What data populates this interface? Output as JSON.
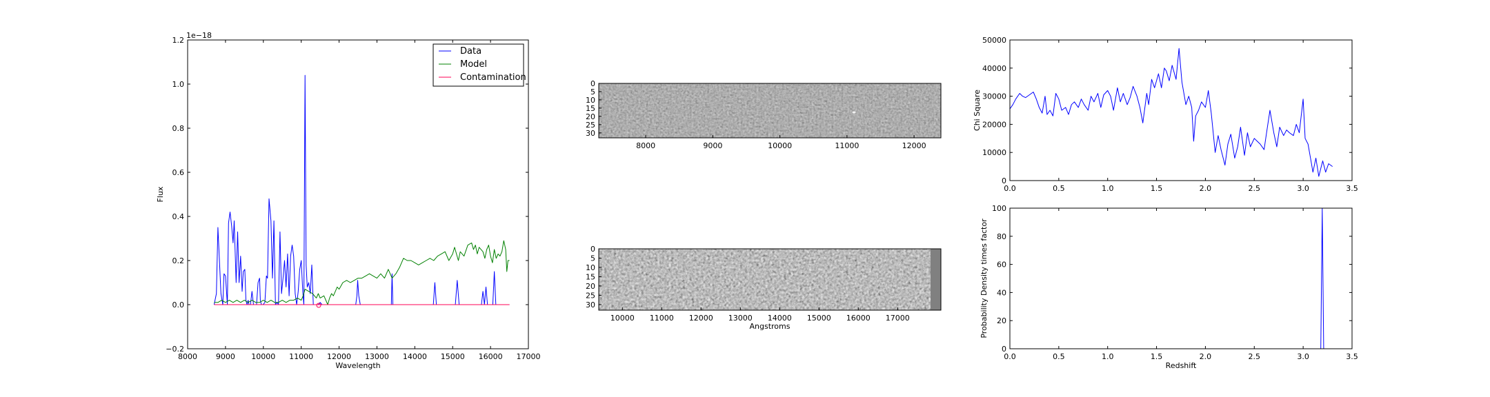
{
  "chart_data": [
    {
      "type": "line",
      "xlabel": "Wavelength",
      "ylabel": "Flux",
      "offset_text": "1e−18",
      "xlim": [
        8000,
        17000
      ],
      "ylim": [
        -0.2,
        1.2
      ],
      "xticks": [
        "8000",
        "9000",
        "10000",
        "11000",
        "12000",
        "13000",
        "14000",
        "15000",
        "16000",
        "17000"
      ],
      "yticks": [
        "−0.2",
        "0.0",
        "0.2",
        "0.4",
        "0.6",
        "0.8",
        "1.0",
        "1.2"
      ],
      "legend_position": "top-right",
      "series": [
        {
          "name": "Data",
          "color": "#0000ff",
          "x": [
            8700,
            8760,
            8800,
            8840,
            8880,
            8930,
            8960,
            9000,
            9050,
            9080,
            9120,
            9160,
            9200,
            9230,
            9280,
            9320,
            9360,
            9400,
            9440,
            9470,
            9510,
            9540,
            9570,
            9600,
            9620,
            9660,
            9700,
            9740,
            9780,
            9820,
            9860,
            9900,
            9920,
            9950,
            9990,
            10040,
            10080,
            10110,
            10150,
            10200,
            10240,
            10280,
            10320,
            10360,
            10400,
            10440,
            10480,
            10520,
            10560,
            10600,
            10640,
            10680,
            10720,
            10760,
            10800,
            10840,
            10880,
            10920,
            10960,
            11000,
            11040,
            11070,
            11100,
            11130,
            11160,
            11200,
            11240,
            11280,
            11320,
            11360,
            11400,
            11450,
            11500,
            11550,
            11600,
            11700,
            11800,
            11900,
            12000,
            12200,
            12400,
            12440,
            12470,
            12490,
            12520,
            12560,
            12700,
            13000,
            13300,
            13380,
            13400,
            13420,
            13460,
            13600,
            14000,
            14400,
            14490,
            14530,
            14570,
            14700,
            15000,
            15070,
            15120,
            15170,
            15300,
            15700,
            15760,
            15800,
            15840,
            15880,
            15920,
            16000,
            16060,
            16100,
            16140,
            16200,
            16300,
            16500
          ],
          "y": [
            0.0,
            0.05,
            0.35,
            0.2,
            0.05,
            0.0,
            0.14,
            0.13,
            0.0,
            0.37,
            0.42,
            0.36,
            0.28,
            0.38,
            0.1,
            0.33,
            0.1,
            0.22,
            0.06,
            0.15,
            0.16,
            0.02,
            0.0,
            0.02,
            0.0,
            0.0,
            0.06,
            0.0,
            0.0,
            0.0,
            0.1,
            0.12,
            0.02,
            0.0,
            0.0,
            0.01,
            0.13,
            0.12,
            0.48,
            0.38,
            0.12,
            0.38,
            0.0,
            0.01,
            0.0,
            0.33,
            0.05,
            0.12,
            0.2,
            0.08,
            0.23,
            0.04,
            0.22,
            0.27,
            0.22,
            0.05,
            0.0,
            0.06,
            0.16,
            0.2,
            0.06,
            0.0,
            1.04,
            0.18,
            0.08,
            0.1,
            0.05,
            0.18,
            0.0,
            0.0,
            0.0,
            0.0,
            0.01,
            0.0,
            0.0,
            0.0,
            0.0,
            0.0,
            0.0,
            0.0,
            0.0,
            0.0,
            0.04,
            0.11,
            0.04,
            0.0,
            0.0,
            0.0,
            0.0,
            0.0,
            0.14,
            0.0,
            0.0,
            0.0,
            0.0,
            0.0,
            0.0,
            0.1,
            0.0,
            0.0,
            0.0,
            0.0,
            0.11,
            0.0,
            0.0,
            0.0,
            0.0,
            0.06,
            0.0,
            0.08,
            0.0,
            0.0,
            0.0,
            0.15,
            0.0,
            0.0,
            0.0,
            0.0
          ]
        },
        {
          "name": "Model",
          "color": "#008000",
          "x": [
            8700,
            8800,
            8900,
            9000,
            9100,
            9200,
            9300,
            9400,
            9500,
            9600,
            9700,
            9800,
            9900,
            10000,
            10100,
            10200,
            10300,
            10400,
            10500,
            10600,
            10700,
            10800,
            10900,
            11000,
            11050,
            11100,
            11200,
            11300,
            11400,
            11450,
            11500,
            11600,
            11700,
            11750,
            11800,
            11850,
            11900,
            11950,
            12000,
            12100,
            12200,
            12300,
            12400,
            12500,
            12600,
            12700,
            12800,
            12900,
            13000,
            13100,
            13200,
            13300,
            13400,
            13500,
            13600,
            13700,
            13800,
            13900,
            14000,
            14100,
            14200,
            14300,
            14400,
            14500,
            14600,
            14700,
            14800,
            14900,
            15000,
            15050,
            15100,
            15150,
            15200,
            15300,
            15400,
            15500,
            15550,
            15600,
            15650,
            15700,
            15800,
            15850,
            15900,
            15950,
            16000,
            16050,
            16100,
            16150,
            16200,
            16250,
            16300,
            16350,
            16400,
            16430,
            16460,
            16500
          ],
          "y": [
            0.01,
            0.01,
            0.02,
            0.01,
            0.02,
            0.01,
            0.02,
            0.01,
            0.02,
            0.01,
            0.02,
            0.01,
            0.01,
            0.02,
            0.01,
            0.02,
            0.01,
            0.01,
            0.02,
            0.01,
            0.02,
            0.02,
            0.03,
            0.02,
            0.04,
            0.07,
            0.06,
            0.05,
            0.03,
            0.05,
            0.03,
            0.04,
            0.0,
            0.03,
            0.05,
            0.04,
            0.06,
            0.08,
            0.07,
            0.1,
            0.11,
            0.1,
            0.11,
            0.12,
            0.12,
            0.13,
            0.14,
            0.13,
            0.12,
            0.14,
            0.12,
            0.16,
            0.12,
            0.14,
            0.17,
            0.21,
            0.2,
            0.2,
            0.19,
            0.18,
            0.19,
            0.2,
            0.21,
            0.2,
            0.22,
            0.23,
            0.24,
            0.2,
            0.23,
            0.26,
            0.23,
            0.2,
            0.24,
            0.22,
            0.27,
            0.28,
            0.25,
            0.27,
            0.23,
            0.26,
            0.24,
            0.21,
            0.25,
            0.27,
            0.22,
            0.19,
            0.25,
            0.21,
            0.23,
            0.22,
            0.24,
            0.29,
            0.25,
            0.15,
            0.2,
            0.2
          ]
        },
        {
          "name": "Contamination",
          "color": "#ff0055",
          "x": [
            8700,
            16500
          ],
          "y": [
            0.0,
            0.0
          ]
        }
      ]
    },
    {
      "type": "heatmap",
      "xticks": [
        "8000",
        "9000",
        "10000",
        "11000",
        "12000"
      ],
      "xlim": [
        7300,
        12400
      ],
      "yticks": [
        "0",
        "5",
        "10",
        "15",
        "20",
        "25",
        "30"
      ],
      "ylim": [
        0,
        33
      ]
    },
    {
      "type": "heatmap",
      "xlabel": "Angstroms",
      "xticks": [
        "10000",
        "11000",
        "12000",
        "13000",
        "14000",
        "15000",
        "16000",
        "17000"
      ],
      "xlim": [
        9400,
        18100
      ],
      "yticks": [
        "0",
        "5",
        "10",
        "15",
        "20",
        "25",
        "30"
      ],
      "ylim": [
        0,
        33
      ]
    },
    {
      "type": "line",
      "ylabel": "Chi Square",
      "xlim": [
        0.0,
        3.5
      ],
      "ylim": [
        0,
        50000
      ],
      "xticks": [
        "0.0",
        "0.5",
        "1.0",
        "1.5",
        "2.0",
        "2.5",
        "3.0",
        "3.5"
      ],
      "yticks": [
        "0",
        "10000",
        "20000",
        "30000",
        "40000",
        "50000"
      ],
      "series": [
        {
          "color": "#0000ff",
          "x": [
            0.0,
            0.03,
            0.06,
            0.1,
            0.13,
            0.16,
            0.2,
            0.24,
            0.27,
            0.3,
            0.33,
            0.36,
            0.38,
            0.41,
            0.44,
            0.47,
            0.5,
            0.53,
            0.57,
            0.6,
            0.63,
            0.66,
            0.7,
            0.73,
            0.76,
            0.8,
            0.83,
            0.86,
            0.9,
            0.93,
            0.96,
            1.0,
            1.03,
            1.06,
            1.1,
            1.13,
            1.16,
            1.2,
            1.23,
            1.26,
            1.3,
            1.33,
            1.36,
            1.4,
            1.42,
            1.45,
            1.48,
            1.52,
            1.55,
            1.58,
            1.6,
            1.63,
            1.66,
            1.7,
            1.73,
            1.76,
            1.8,
            1.83,
            1.86,
            1.88,
            1.9,
            1.93,
            1.96,
            2.0,
            2.03,
            2.06,
            2.1,
            2.13,
            2.16,
            2.2,
            2.23,
            2.26,
            2.3,
            2.33,
            2.36,
            2.4,
            2.43,
            2.46,
            2.5,
            2.53,
            2.56,
            2.6,
            2.63,
            2.66,
            2.7,
            2.73,
            2.76,
            2.8,
            2.83,
            2.86,
            2.9,
            2.93,
            2.96,
            3.0,
            3.02,
            3.05,
            3.08,
            3.1,
            3.13,
            3.16,
            3.2,
            3.23,
            3.26,
            3.3
          ],
          "y": [
            25500,
            27000,
            29000,
            31000,
            30000,
            29500,
            30500,
            31500,
            29000,
            26000,
            24000,
            30000,
            23500,
            25000,
            23000,
            31000,
            29000,
            25000,
            26000,
            23500,
            27000,
            28000,
            26000,
            29000,
            27000,
            25000,
            30000,
            28000,
            31000,
            26000,
            30500,
            32000,
            30000,
            25000,
            33000,
            28000,
            31000,
            27000,
            29500,
            33500,
            30000,
            26000,
            20500,
            31000,
            27000,
            36000,
            33000,
            38000,
            33000,
            40000,
            39000,
            35500,
            41000,
            36000,
            47000,
            35000,
            27000,
            30000,
            26000,
            14000,
            23000,
            25000,
            28000,
            26000,
            32000,
            24000,
            10000,
            16000,
            11000,
            5500,
            13000,
            16500,
            8000,
            12000,
            19000,
            9000,
            17000,
            12000,
            15000,
            14000,
            13000,
            11000,
            18000,
            25000,
            17000,
            12000,
            19000,
            16000,
            18000,
            17000,
            16000,
            20000,
            17000,
            29000,
            15000,
            13000,
            7000,
            3000,
            8000,
            1500,
            7000,
            3000,
            6000,
            5000
          ]
        }
      ]
    },
    {
      "type": "line",
      "xlabel": "Redshift",
      "ylabel": "Probability Density times factor",
      "xlim": [
        0.0,
        3.5
      ],
      "ylim": [
        0,
        100
      ],
      "xticks": [
        "0.0",
        "0.5",
        "1.0",
        "1.5",
        "2.0",
        "2.5",
        "3.0",
        "3.5"
      ],
      "yticks": [
        "0",
        "20",
        "40",
        "60",
        "80",
        "100"
      ],
      "series": [
        {
          "color": "#0000ff",
          "x": [
            0.0,
            3.15,
            3.18,
            3.195,
            3.21,
            3.3
          ],
          "y": [
            0,
            0,
            0,
            100,
            0,
            0
          ]
        }
      ]
    }
  ]
}
